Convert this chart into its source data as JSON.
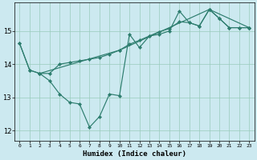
{
  "xlabel": "Humidex (Indice chaleur)",
  "background_color": "#cce9f0",
  "line_color": "#2d7d6e",
  "grid_color": "#99ccbb",
  "xlim": [
    -0.5,
    23.5
  ],
  "ylim": [
    11.7,
    15.85
  ],
  "yticks": [
    12,
    13,
    14,
    15
  ],
  "ytick_top": 15,
  "xticks": [
    0,
    1,
    2,
    3,
    4,
    5,
    6,
    7,
    8,
    9,
    10,
    11,
    12,
    13,
    14,
    15,
    16,
    17,
    18,
    19,
    20,
    21,
    22,
    23
  ],
  "line1_x": [
    0,
    1,
    2,
    3,
    4,
    5,
    6,
    7,
    8,
    9,
    10,
    11,
    12,
    13,
    14,
    15,
    16,
    17,
    18,
    19,
    20,
    21,
    22,
    23
  ],
  "line1_y": [
    14.62,
    13.82,
    13.72,
    13.5,
    13.1,
    12.85,
    12.8,
    12.1,
    12.42,
    13.1,
    13.05,
    14.9,
    14.5,
    14.85,
    14.9,
    15.0,
    15.6,
    15.25,
    15.15,
    15.65,
    15.38,
    15.1,
    15.1,
    15.1
  ],
  "line2_x": [
    0,
    1,
    2,
    3,
    4,
    5,
    6,
    7,
    8,
    9,
    10,
    11,
    12,
    13,
    14,
    15,
    16,
    17,
    18,
    19,
    20,
    21,
    22,
    23
  ],
  "line2_y": [
    14.62,
    13.82,
    13.72,
    13.72,
    14.0,
    14.05,
    14.1,
    14.15,
    14.2,
    14.3,
    14.42,
    14.6,
    14.72,
    14.85,
    14.98,
    15.07,
    15.28,
    15.25,
    15.15,
    15.65,
    15.38,
    15.1,
    15.1,
    15.1
  ],
  "line3_x": [
    2,
    10,
    19,
    23
  ],
  "line3_y": [
    13.72,
    14.42,
    15.65,
    15.1
  ],
  "marker": "D",
  "markersize": 2.2,
  "linewidth": 0.85
}
